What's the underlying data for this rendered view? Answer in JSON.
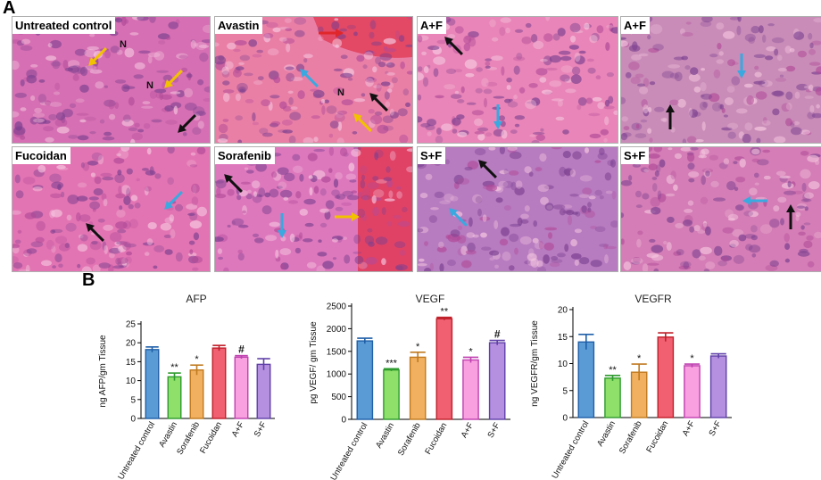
{
  "figure": {
    "panel_a_letter": "A",
    "panel_b_letter": "B"
  },
  "panel_a": {
    "images": [
      {
        "label": "Untreated control",
        "theme": "#d66fb3",
        "arrows": [
          {
            "c": "#f2c200",
            "dir": "dl"
          },
          {
            "c": "#f2c200",
            "dir": "dl"
          },
          {
            "c": "#111111",
            "dir": "dl"
          }
        ],
        "marks": [
          {
            "text": "N"
          },
          {
            "text": "N"
          }
        ]
      },
      {
        "label": "Avastin",
        "theme": "#ea7fa6",
        "arrows": [
          {
            "c": "#e0262b",
            "dir": "r"
          },
          {
            "c": "#39a9e0",
            "dir": "ul"
          },
          {
            "c": "#111111",
            "dir": "ul"
          },
          {
            "c": "#f2c200",
            "dir": "ul"
          }
        ],
        "marks": [
          {
            "text": "N"
          }
        ]
      },
      {
        "label": "A+F",
        "theme": "#e985b8",
        "arrows": [
          {
            "c": "#111111",
            "dir": "ul"
          },
          {
            "c": "#39a9e0",
            "dir": "d"
          }
        ],
        "marks": []
      },
      {
        "label": "A+F",
        "theme": "#c98cb8",
        "arrows": [
          {
            "c": "#39a9e0",
            "dir": "d"
          },
          {
            "c": "#111111",
            "dir": "u"
          }
        ],
        "marks": []
      },
      {
        "label": "Fucoidan",
        "theme": "#e374b3",
        "arrows": [
          {
            "c": "#39a9e0",
            "dir": "dl"
          },
          {
            "c": "#111111",
            "dir": "ul"
          }
        ],
        "marks": []
      },
      {
        "label": "Sorafenib",
        "theme": "#de78bd",
        "arrows": [
          {
            "c": "#111111",
            "dir": "ul"
          },
          {
            "c": "#39a9e0",
            "dir": "d"
          },
          {
            "c": "#f2c200",
            "dir": "r"
          }
        ],
        "marks": []
      },
      {
        "label": "S+F",
        "theme": "#b77bc0",
        "arrows": [
          {
            "c": "#111111",
            "dir": "ul"
          },
          {
            "c": "#39a9e0",
            "dir": "ul"
          }
        ],
        "marks": []
      },
      {
        "label": "S+F",
        "theme": "#d47db6",
        "arrows": [
          {
            "c": "#39a9e0",
            "dir": "l"
          },
          {
            "c": "#111111",
            "dir": "u"
          }
        ],
        "marks": []
      }
    ]
  },
  "chart_data": [
    {
      "type": "bar",
      "title": "AFP",
      "ylabel": "ng AFP/gm Tissue",
      "xlabel": "",
      "ylim": [
        0,
        25
      ],
      "yticks": [
        0,
        5,
        10,
        15,
        20,
        25
      ],
      "categories": [
        "Untreated control",
        "Avastin",
        "Sorafenib",
        "Fucoidan",
        "A+F",
        "S+F"
      ],
      "values": [
        18.2,
        11.0,
        12.8,
        18.6,
        16.2,
        14.3
      ],
      "errors": [
        0.7,
        1.0,
        1.3,
        0.7,
        0.4,
        1.5
      ],
      "annotations": [
        "",
        "**",
        "*",
        "",
        "#",
        ""
      ],
      "colors": [
        "#5b9bd5",
        "#8fe06a",
        "#f0b060",
        "#f06070",
        "#f8a0e0",
        "#b590e0"
      ],
      "edge_colors": [
        "#1f5fa8",
        "#2e9a2e",
        "#c07a20",
        "#c0202a",
        "#c040b0",
        "#6040a8"
      ],
      "grid": false
    },
    {
      "type": "bar",
      "title": "VEGF",
      "ylabel": "pg VEGF/ gm Tissue",
      "xlabel": "",
      "ylim": [
        0,
        2500
      ],
      "yticks": [
        0,
        500,
        1000,
        1500,
        2000,
        2500
      ],
      "categories": [
        "Untreated control",
        "Avastin",
        "Sorafenib",
        "Fucoidan",
        "A+F",
        "S+F"
      ],
      "values": [
        1730,
        1090,
        1370,
        2220,
        1310,
        1690
      ],
      "errors": [
        60,
        25,
        110,
        30,
        60,
        50
      ],
      "annotations": [
        "",
        "***",
        "*",
        "**",
        "*",
        "#"
      ],
      "colors": [
        "#5b9bd5",
        "#8fe06a",
        "#f0b060",
        "#f06070",
        "#f8a0e0",
        "#b590e0"
      ],
      "edge_colors": [
        "#1f5fa8",
        "#2e9a2e",
        "#c07a20",
        "#c0202a",
        "#c040b0",
        "#6040a8"
      ],
      "grid": false
    },
    {
      "type": "bar",
      "title": "VEGFR",
      "ylabel": "ng VEGFR/gm Tissue",
      "xlabel": "",
      "ylim": [
        0,
        20
      ],
      "yticks": [
        0,
        5,
        10,
        15,
        20
      ],
      "categories": [
        "Untreated control",
        "Avastin",
        "Sorafenib",
        "Fucoidan",
        "A+F",
        "S+F"
      ],
      "values": [
        14.0,
        7.3,
        8.4,
        14.9,
        9.6,
        11.4
      ],
      "errors": [
        1.4,
        0.5,
        1.5,
        0.8,
        0.3,
        0.4
      ],
      "annotations": [
        "",
        "**",
        "*",
        "",
        "*",
        ""
      ],
      "colors": [
        "#5b9bd5",
        "#8fe06a",
        "#f0b060",
        "#f06070",
        "#f8a0e0",
        "#b590e0"
      ],
      "edge_colors": [
        "#1f5fa8",
        "#2e9a2e",
        "#c07a20",
        "#c0202a",
        "#c040b0",
        "#6040a8"
      ],
      "grid": false
    }
  ]
}
